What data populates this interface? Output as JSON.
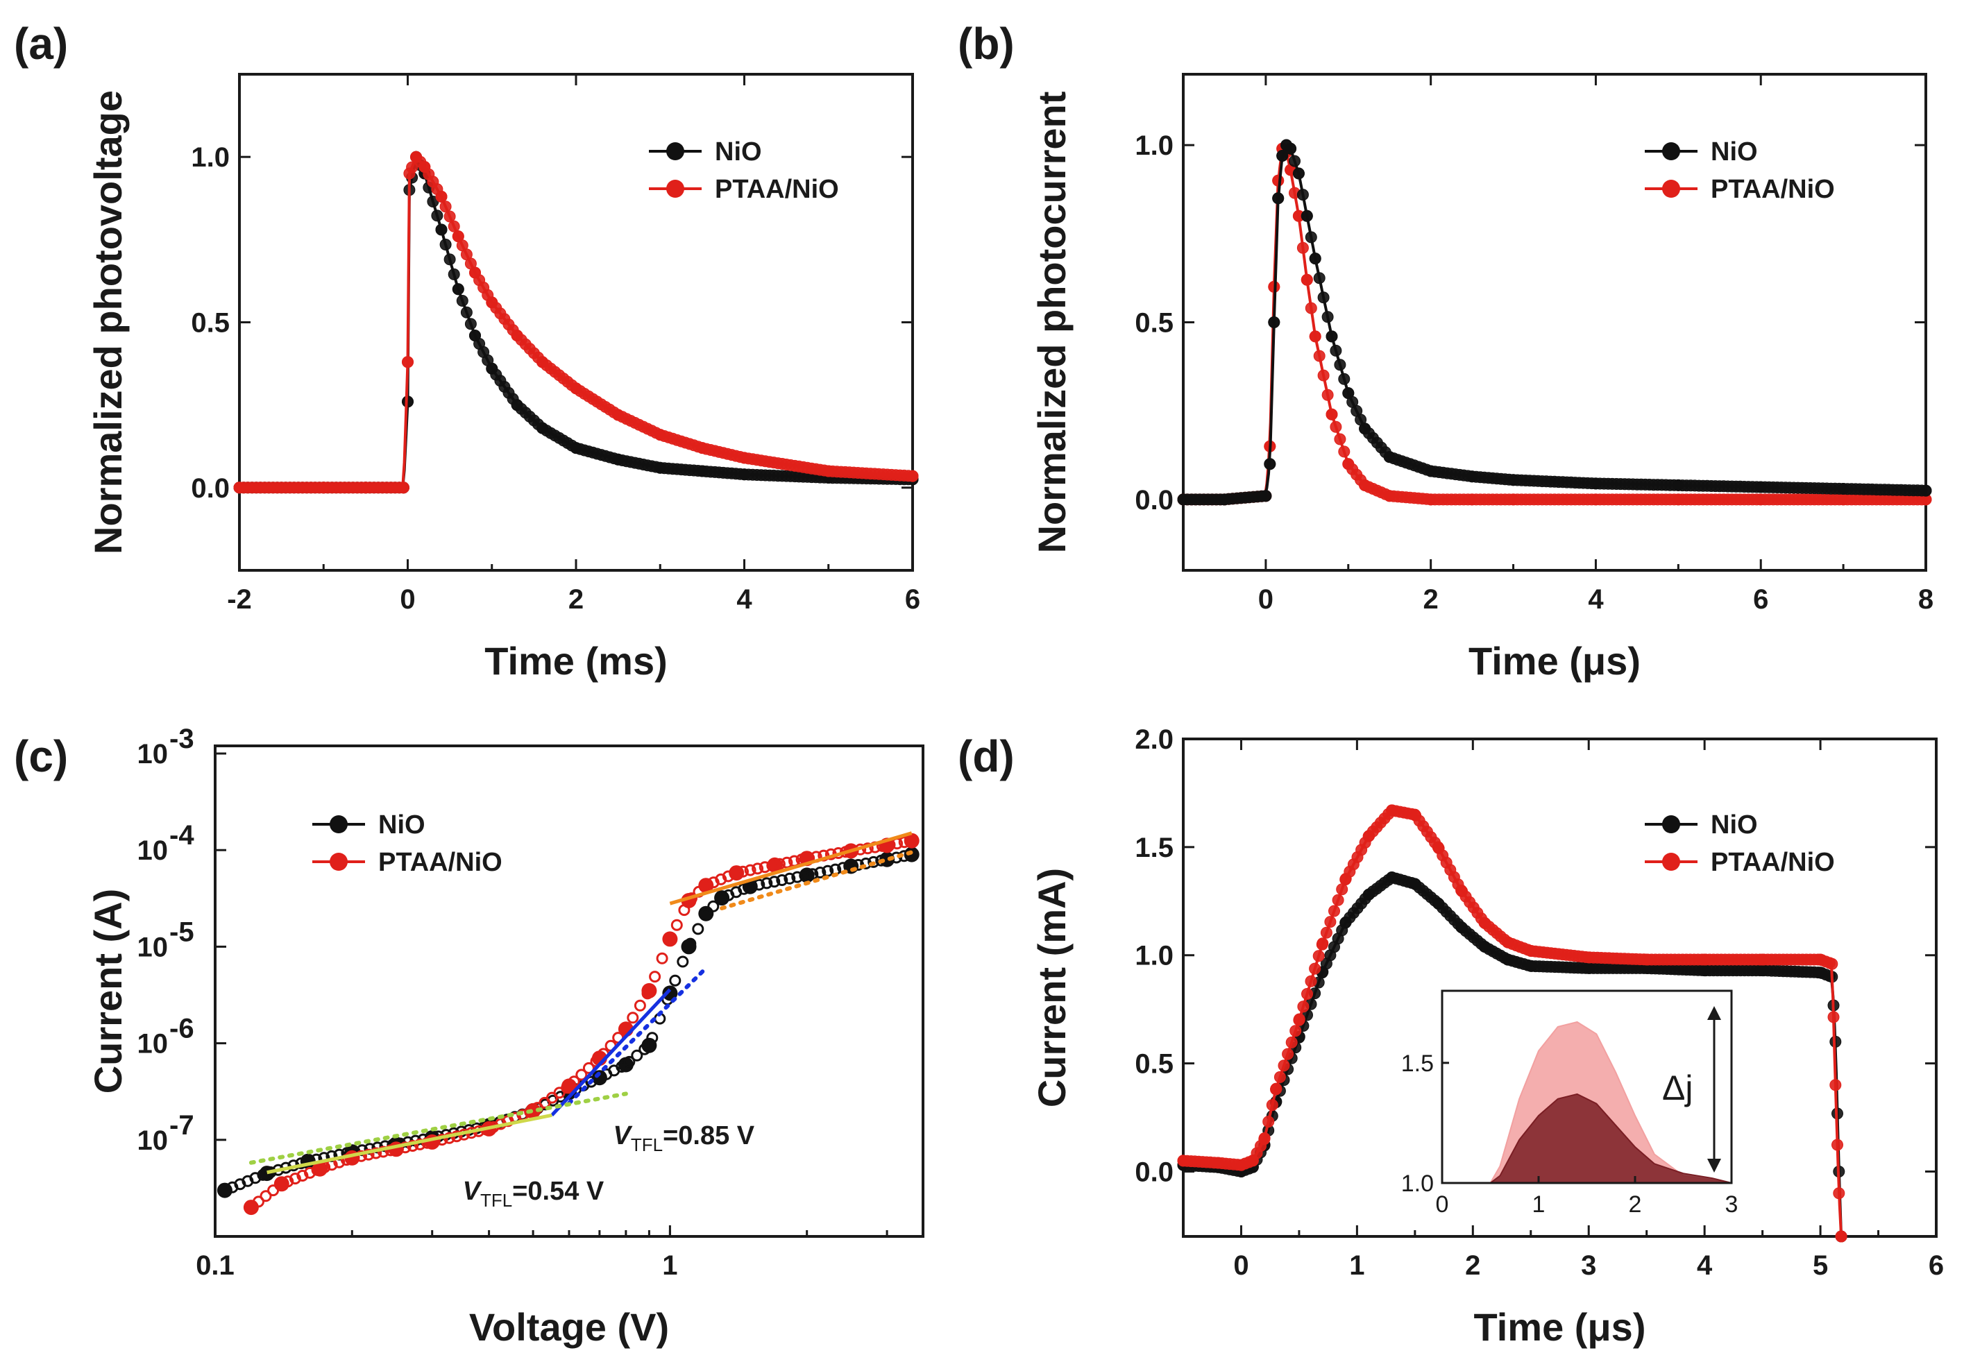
{
  "colors": {
    "nio": "#111111",
    "ptaa": "#e0201a",
    "axis": "#1a1a1a",
    "fit_blue": "#1530e0",
    "fit_orange": "#f08a1a",
    "fit_green": "#9fd044",
    "fit_yellowgreen": "#cfd84a",
    "inset_dark": "#7a1e24",
    "inset_light": "#f2a0a0"
  },
  "chart_data": [
    {
      "panel": "(a)",
      "type": "scatter",
      "title": "",
      "xlabel": "Time (ms)",
      "ylabel": "Normalized photovoltage",
      "xlim": [
        -2,
        6
      ],
      "ylim": [
        -0.25,
        1.25
      ],
      "xticks": [
        "-2",
        "0",
        "2",
        "4",
        "6"
      ],
      "yticks": [
        "0.0",
        "0.5",
        "1.0"
      ],
      "legend_position": "top-right",
      "series": [
        {
          "name": "NiO",
          "color": "nio",
          "x": [
            -2,
            -1,
            -0.5,
            -0.05,
            0,
            0.02,
            0.1,
            0.2,
            0.4,
            0.6,
            0.8,
            1,
            1.3,
            1.6,
            2,
            2.5,
            3,
            3.5,
            4,
            5,
            6
          ],
          "y": [
            0,
            0,
            0,
            0,
            0.26,
            0.9,
            1.0,
            0.95,
            0.78,
            0.6,
            0.46,
            0.36,
            0.25,
            0.18,
            0.12,
            0.085,
            0.06,
            0.05,
            0.04,
            0.03,
            0.025
          ]
        },
        {
          "name": "PTAA/NiO",
          "color": "ptaa",
          "x": [
            -2,
            -1,
            -0.5,
            -0.05,
            0,
            0.02,
            0.1,
            0.2,
            0.4,
            0.6,
            0.8,
            1,
            1.3,
            1.6,
            2,
            2.5,
            3,
            3.5,
            4,
            5,
            6
          ],
          "y": [
            0,
            0,
            0,
            0,
            0.38,
            0.95,
            1.0,
            0.97,
            0.88,
            0.76,
            0.65,
            0.56,
            0.46,
            0.38,
            0.3,
            0.22,
            0.16,
            0.12,
            0.09,
            0.05,
            0.035
          ]
        }
      ]
    },
    {
      "panel": "(b)",
      "type": "scatter",
      "title": "",
      "xlabel": "Time (μs)",
      "ylabel": "Normalized photocurrent",
      "xlim": [
        -1,
        8
      ],
      "ylim": [
        -0.2,
        1.2
      ],
      "xticks": [
        "0",
        "2",
        "4",
        "6",
        "8"
      ],
      "yticks": [
        "0.0",
        "0.5",
        "1.0"
      ],
      "legend_position": "top-right",
      "series": [
        {
          "name": "NiO",
          "color": "nio",
          "x": [
            -1,
            -0.5,
            0,
            0.05,
            0.1,
            0.15,
            0.2,
            0.25,
            0.3,
            0.4,
            0.5,
            0.6,
            0.8,
            1,
            1.2,
            1.5,
            2,
            2.5,
            3,
            4,
            5,
            6,
            7,
            8
          ],
          "y": [
            0,
            0,
            0.01,
            0.1,
            0.5,
            0.85,
            0.97,
            1.0,
            0.99,
            0.92,
            0.8,
            0.68,
            0.46,
            0.3,
            0.2,
            0.12,
            0.08,
            0.065,
            0.055,
            0.045,
            0.04,
            0.035,
            0.03,
            0.025
          ]
        },
        {
          "name": "PTAA/NiO",
          "color": "ptaa",
          "x": [
            -1,
            -0.5,
            0,
            0.05,
            0.1,
            0.15,
            0.2,
            0.25,
            0.3,
            0.4,
            0.5,
            0.6,
            0.8,
            1,
            1.2,
            1.5,
            2,
            2.5,
            3,
            4,
            5,
            6,
            7,
            8
          ],
          "y": [
            0,
            0,
            0.01,
            0.15,
            0.6,
            0.9,
            0.99,
            0.98,
            0.93,
            0.8,
            0.62,
            0.46,
            0.24,
            0.1,
            0.04,
            0.01,
            0,
            0,
            0,
            0,
            0,
            0,
            0,
            0
          ]
        }
      ]
    },
    {
      "panel": "(c)",
      "type": "scatter",
      "title": "",
      "xlabel": "Voltage (V)",
      "ylabel": "Current (A)",
      "xscale": "log",
      "yscale": "log",
      "xlim": [
        0.1,
        3.6
      ],
      "ylim": [
        1e-08,
        0.0012
      ],
      "xticks": [
        "0.1",
        "1"
      ],
      "yticks": [
        {
          "base": "10",
          "exp": "-7"
        },
        {
          "base": "10",
          "exp": "-6"
        },
        {
          "base": "10",
          "exp": "-5"
        },
        {
          "base": "10",
          "exp": "-4"
        },
        {
          "base": "10",
          "exp": "-3"
        }
      ],
      "legend_position": "top-left",
      "series": [
        {
          "name": "NiO",
          "color": "nio",
          "x": [
            0.105,
            0.13,
            0.16,
            0.2,
            0.25,
            0.3,
            0.4,
            0.5,
            0.6,
            0.7,
            0.8,
            0.9,
            1.0,
            1.1,
            1.2,
            1.3,
            1.5,
            2.0,
            2.5,
            3.0,
            3.4
          ],
          "y": [
            3e-08,
            4.5e-08,
            6e-08,
            7.5e-08,
            9e-08,
            1.05e-07,
            1.4e-07,
            2e-07,
            3.1e-07,
            4.4e-07,
            6e-07,
            9.5e-07,
            3.3e-06,
            1e-05,
            2.2e-05,
            3.2e-05,
            4.2e-05,
            5.5e-05,
            6.8e-05,
            8e-05,
            9e-05
          ]
        },
        {
          "name": "PTAA/NiO",
          "color": "ptaa",
          "x": [
            0.12,
            0.14,
            0.17,
            0.2,
            0.25,
            0.3,
            0.4,
            0.5,
            0.6,
            0.7,
            0.8,
            0.9,
            1.0,
            1.1,
            1.2,
            1.4,
            1.7,
            2.0,
            2.5,
            3.0,
            3.4
          ],
          "y": [
            2e-08,
            3.5e-08,
            5e-08,
            6.5e-08,
            8e-08,
            9.5e-08,
            1.3e-07,
            2e-07,
            3.6e-07,
            7e-07,
            1.4e-06,
            3.5e-06,
            1.2e-05,
            3e-05,
            4.3e-05,
            5.8e-05,
            7e-05,
            8.2e-05,
            9.8e-05,
            0.000112,
            0.000125
          ]
        }
      ],
      "fit_lines": [
        {
          "style": "solid",
          "color": "fit_blue",
          "x": [
            0.55,
            1.0
          ],
          "y": [
            1.8e-07,
            3.6e-06
          ]
        },
        {
          "style": "dotted",
          "color": "fit_blue",
          "x": [
            0.6,
            1.2
          ],
          "y": [
            2.4e-07,
            6e-06
          ]
        },
        {
          "style": "solid",
          "color": "fit_orange",
          "x": [
            1.0,
            3.4
          ],
          "y": [
            2.8e-05,
            0.00015
          ]
        },
        {
          "style": "dotted",
          "color": "fit_orange",
          "x": [
            1.3,
            3.4
          ],
          "y": [
            2.5e-05,
            9.5e-05
          ]
        },
        {
          "style": "solid",
          "color": "fit_yellowgreen",
          "x": [
            0.13,
            0.55
          ],
          "y": [
            4.6e-08,
            1.8e-07
          ]
        },
        {
          "style": "dotted",
          "color": "fit_green",
          "x": [
            0.12,
            0.8
          ],
          "y": [
            5.8e-08,
            3e-07
          ]
        }
      ],
      "annotations": [
        {
          "symbol": "V",
          "sub": "TFL",
          "value": "=0.85 V",
          "x": 0.75,
          "y": 9e-08
        },
        {
          "symbol": "V",
          "sub": "TFL",
          "value": "=0.54 V",
          "x": 0.35,
          "y": 2.4e-08
        }
      ]
    },
    {
      "panel": "(d)",
      "type": "scatter",
      "title": "",
      "xlabel": "Time (μs)",
      "ylabel": "Current (mA)",
      "xlim": [
        -0.5,
        6
      ],
      "ylim": [
        -0.3,
        2.0
      ],
      "xticks": [
        "0",
        "1",
        "2",
        "3",
        "4",
        "5",
        "6"
      ],
      "yticks": [
        "0.0",
        "0.5",
        "1.0",
        "1.5",
        "2.0"
      ],
      "legend_position": "top-right",
      "series": [
        {
          "name": "NiO",
          "color": "nio",
          "x": [
            -0.5,
            -0.2,
            0,
            0.1,
            0.2,
            0.3,
            0.5,
            0.7,
            0.9,
            1.1,
            1.3,
            1.5,
            1.7,
            1.9,
            2.1,
            2.3,
            2.5,
            3,
            3.5,
            4,
            4.5,
            5,
            5.1,
            5.13,
            5.16,
            5.18
          ],
          "y": [
            0.03,
            0.02,
            0,
            0.02,
            0.12,
            0.32,
            0.62,
            0.92,
            1.15,
            1.28,
            1.36,
            1.33,
            1.24,
            1.13,
            1.04,
            0.98,
            0.95,
            0.94,
            0.94,
            0.93,
            0.93,
            0.92,
            0.9,
            0.6,
            0,
            -0.3
          ]
        },
        {
          "name": "PTAA/NiO",
          "color": "ptaa",
          "x": [
            -0.5,
            -0.2,
            0,
            0.1,
            0.2,
            0.3,
            0.5,
            0.7,
            0.9,
            1.1,
            1.3,
            1.5,
            1.7,
            1.9,
            2.1,
            2.3,
            2.5,
            3,
            3.5,
            4,
            4.5,
            5,
            5.1,
            5.13,
            5.16,
            5.18
          ],
          "y": [
            0.05,
            0.04,
            0.03,
            0.05,
            0.15,
            0.38,
            0.7,
            1.05,
            1.35,
            1.55,
            1.67,
            1.65,
            1.5,
            1.3,
            1.15,
            1.06,
            1.02,
            0.99,
            0.98,
            0.98,
            0.98,
            0.98,
            0.96,
            0.4,
            -0.1,
            -0.3
          ]
        }
      ],
      "inset": {
        "xlim": [
          0,
          3
        ],
        "ylim": [
          1.0,
          1.8
        ],
        "xticks": [
          "0",
          "1",
          "2",
          "3"
        ],
        "yticks": [
          "1.0",
          "1.5"
        ],
        "annotation": "Δj",
        "series": [
          {
            "name": "PTAA/NiO",
            "color": "inset_light",
            "x": [
              0,
              0.5,
              0.6,
              0.8,
              1.0,
              1.2,
              1.4,
              1.6,
              1.8,
              2.0,
              2.2,
              2.5,
              3.0
            ],
            "y": [
              1.0,
              1.0,
              1.07,
              1.35,
              1.55,
              1.65,
              1.67,
              1.62,
              1.46,
              1.28,
              1.12,
              1.03,
              1.0
            ]
          },
          {
            "name": "NiO",
            "color": "inset_dark",
            "x": [
              0,
              0.5,
              0.6,
              0.8,
              1.0,
              1.2,
              1.4,
              1.6,
              1.8,
              2.0,
              2.2,
              2.5,
              2.8,
              3.0
            ],
            "y": [
              1.0,
              1.0,
              1.03,
              1.18,
              1.28,
              1.35,
              1.37,
              1.33,
              1.24,
              1.15,
              1.08,
              1.04,
              1.02,
              1.0
            ]
          }
        ]
      }
    }
  ]
}
